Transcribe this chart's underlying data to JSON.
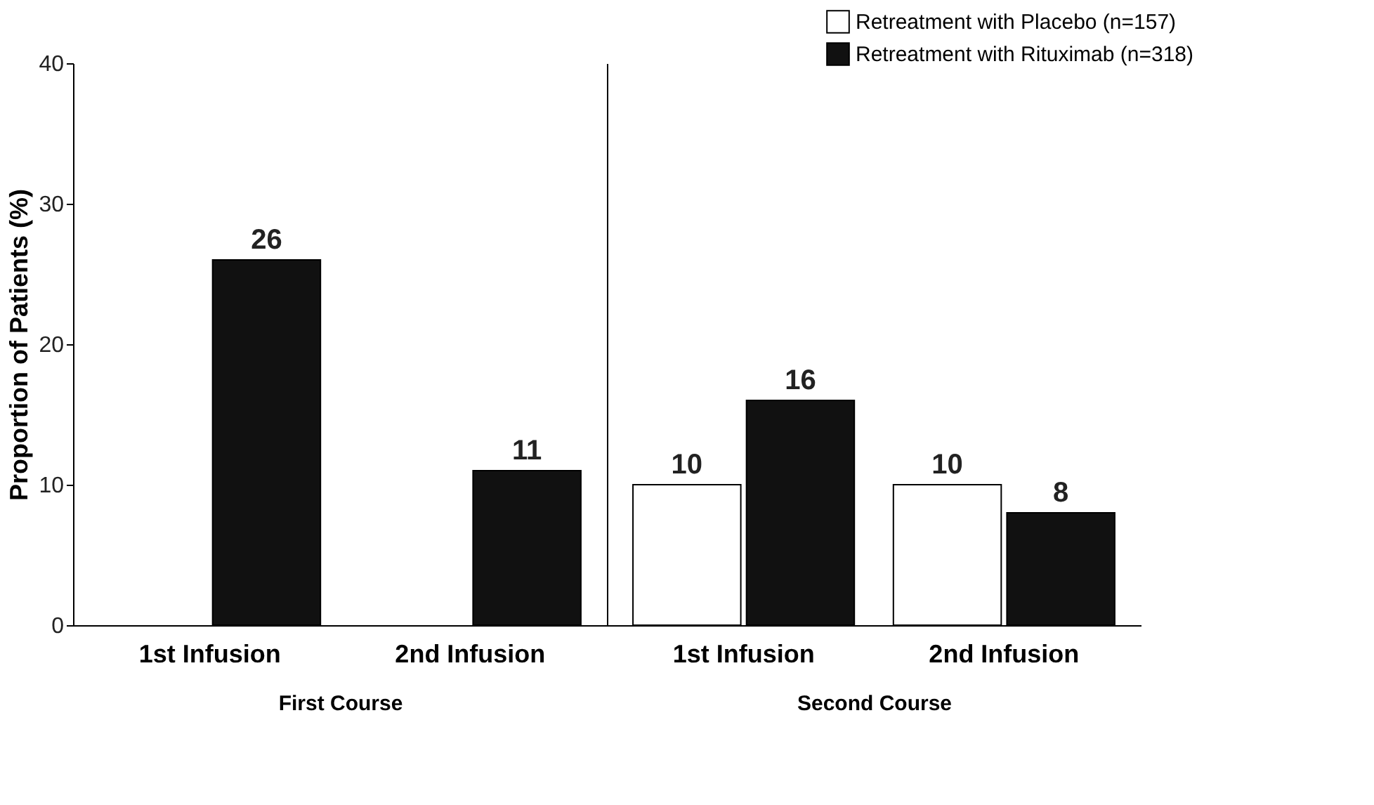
{
  "chart_data": [
    {
      "type": "bar",
      "categories": [
        "1st Infusion",
        "2nd Infusion"
      ],
      "xlabel": "First Course",
      "ylabel": "Proportion of Patients (%)",
      "ylim": [
        0,
        40
      ],
      "yticks": [
        0,
        10,
        20,
        30,
        40
      ],
      "data_labels": true,
      "grid": false,
      "legend": false,
      "series": [
        {
          "color": "#ffffff",
          "values": [
            null,
            null
          ]
        },
        {
          "color": "#111111",
          "values": [
            26,
            11
          ]
        }
      ]
    },
    {
      "type": "bar",
      "categories": [
        "1st Infusion",
        "2nd Infusion"
      ],
      "xlabel": "Second Course",
      "ylim": [
        0,
        40
      ],
      "yticks": [
        0,
        10,
        20,
        30,
        40
      ],
      "tick_labels": "x",
      "data_labels": true,
      "grid": false,
      "legend": "top right",
      "series": [
        {
          "name": "Retreatment with Placebo (n=157)",
          "color": "#ffffff",
          "values": [
            10,
            10
          ]
        },
        {
          "name": "Retreatment with Rituximab (n=318)",
          "color": "#111111",
          "values": [
            16,
            8
          ]
        }
      ]
    }
  ]
}
